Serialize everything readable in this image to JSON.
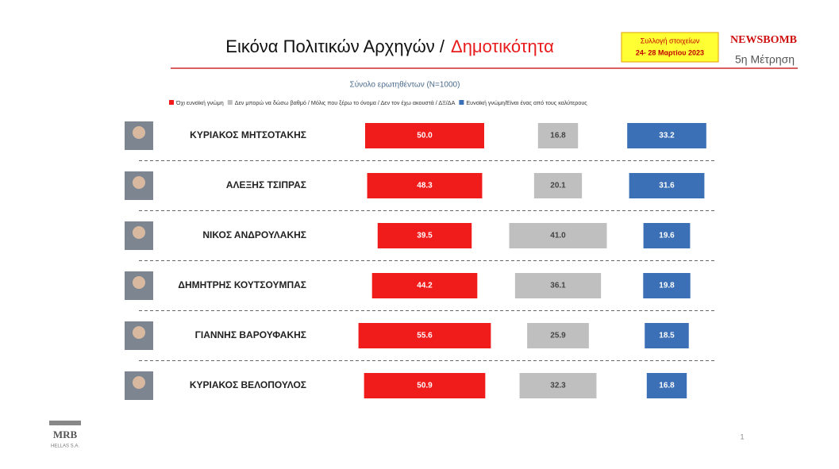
{
  "header": {
    "title": "Εικόνα Πολιτικών Αρχηγών /",
    "title_highlight": "Δημοτικότητα",
    "box_line1": "Συλλογή στοιχείων",
    "box_line2": "24- 28 Μαρτίου 2023",
    "brand": "NEWSBOMB",
    "wave": "5η Μέτρηση"
  },
  "footer": {
    "logo": "MRB",
    "logo_sub": "HELLAS S.A.",
    "page": "1"
  },
  "chart_data": {
    "type": "bar",
    "subtitle": "Σύνολο ερωτηθέντων (N=1000)",
    "categories": [
      "ΚΥΡΙΑΚΟΣ ΜΗΤΣΟΤΑΚΗΣ",
      "ΑΛΕΞΗΣ ΤΣΙΠΡΑΣ",
      "ΝΙΚΟΣ ΑΝΔΡΟΥΛΑΚΗΣ",
      "ΔΗΜΗΤΡΗΣ ΚΟΥΤΣΟΥΜΠΑΣ",
      "ΓΙΑΝΝΗΣ ΒΑΡΟΥΦΑΚΗΣ",
      "ΚΥΡΙΑΚΟΣ ΒΕΛΟΠΟΥΛΟΣ"
    ],
    "series": [
      {
        "name": "Όχι ευνοϊκή γνώμη",
        "color": "#f01c1c",
        "values": [
          50.0,
          48.3,
          39.5,
          44.2,
          55.6,
          50.9
        ],
        "value_labels": [
          "50.0",
          "48.3",
          "39.5",
          "44.2",
          "55.6",
          "50.9"
        ]
      },
      {
        "name": "Δεν μπορώ να δώσω βαθμό / Μόλις που ξέρω το όνομα / Δεν τον έχω ακουστά / ΔΞ/ΔΑ",
        "color": "#bfbfbf",
        "values": [
          16.8,
          20.1,
          41.0,
          36.1,
          25.9,
          32.3
        ],
        "value_labels": [
          "16.8",
          "20.1",
          "41.0",
          "36.1",
          "25.9",
          "32.3"
        ]
      },
      {
        "name": "Ευνοϊκή γνώμη/Είναι ένας από τους καλύτερους",
        "color": "#3b6fb6",
        "values": [
          33.2,
          31.6,
          19.6,
          19.8,
          18.5,
          16.8
        ],
        "value_labels": [
          "33.2",
          "31.6",
          "19.6",
          "19.8",
          "18.5",
          "16.8"
        ]
      }
    ]
  }
}
